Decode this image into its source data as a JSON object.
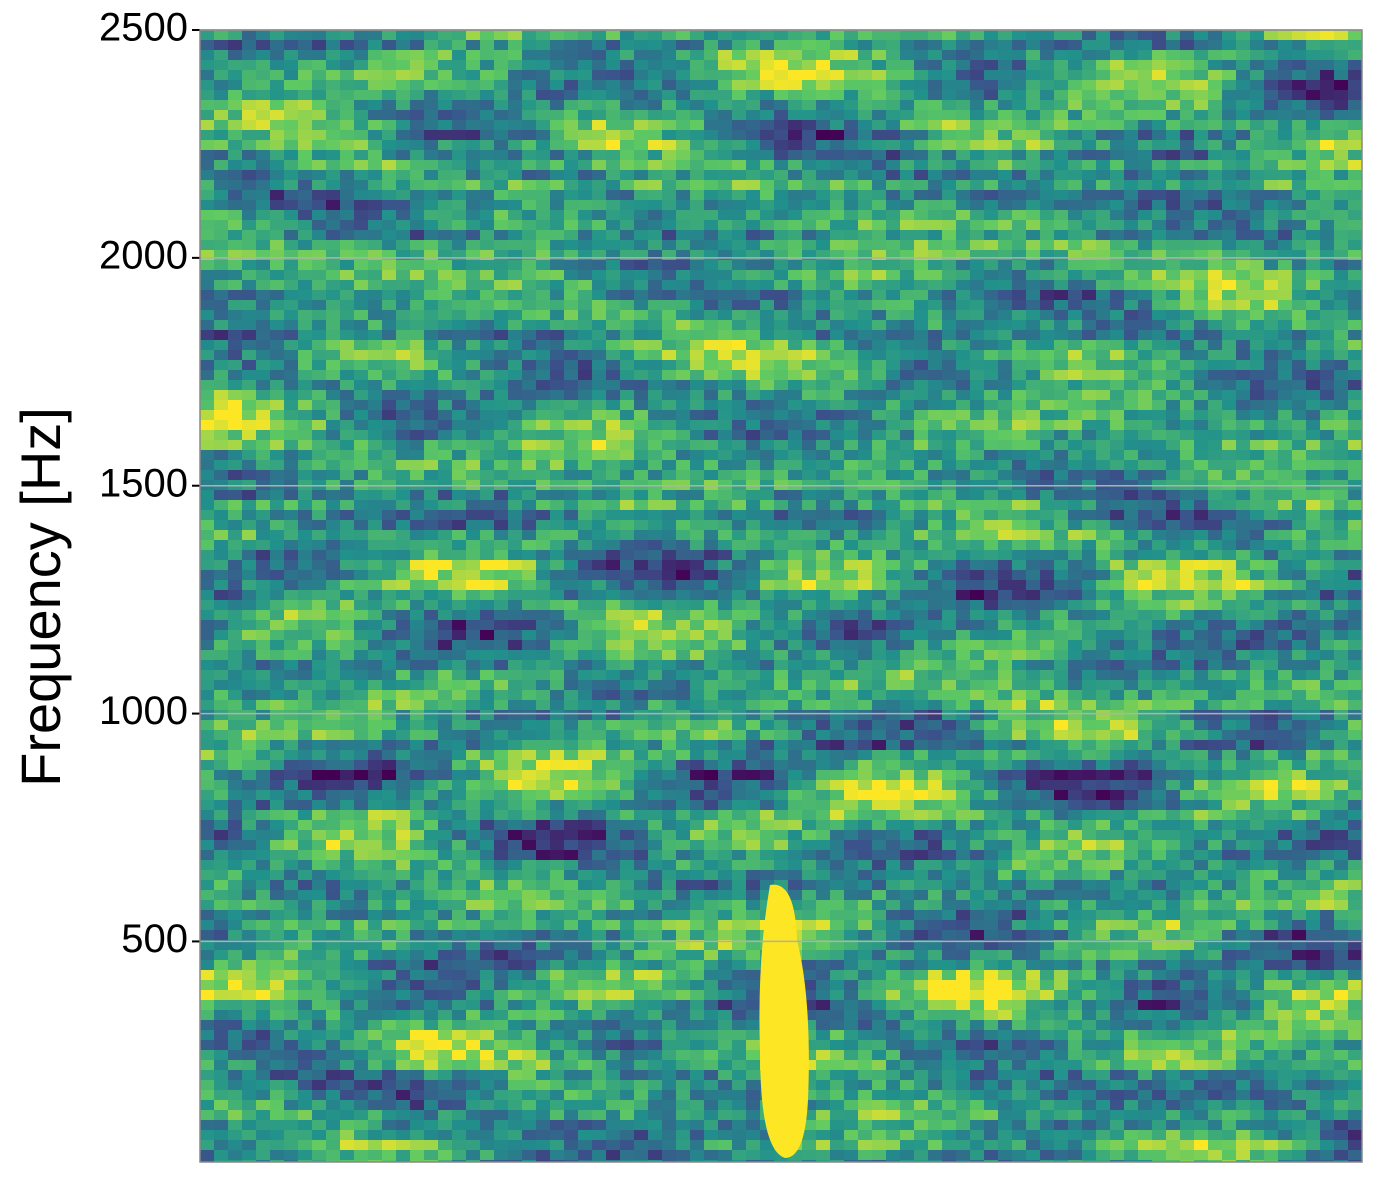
{
  "chart_data": {
    "type": "spectrogram",
    "ylabel": "Frequency [Hz]",
    "ylim": [
      16,
      2500
    ],
    "yticks": [
      500,
      1000,
      1500,
      2000,
      2500
    ],
    "grid": true
  }
}
